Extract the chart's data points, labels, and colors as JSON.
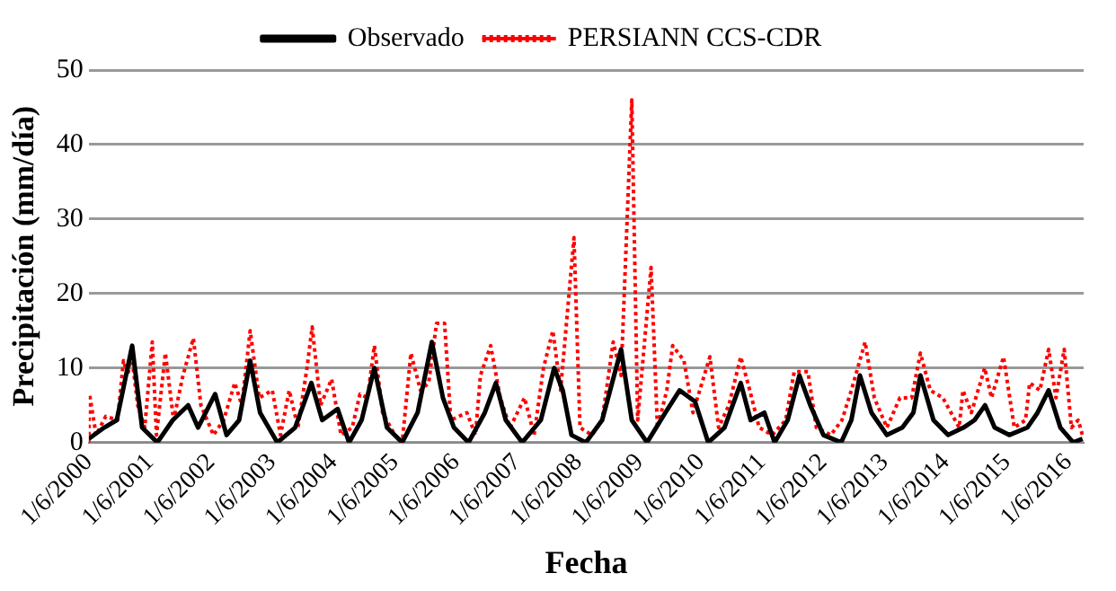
{
  "chart_data": {
    "type": "line",
    "xlabel": "Fecha",
    "ylabel": "Precipitación (mm/día)",
    "xlim": [
      "2000-06-01",
      "2016-09-01"
    ],
    "xticks": [
      {
        "value": "2000-06-01",
        "label": "1/6/2000"
      },
      {
        "value": "2001-06-01",
        "label": "1/6/2001"
      },
      {
        "value": "2002-06-01",
        "label": "1/6/2002"
      },
      {
        "value": "2003-06-01",
        "label": "1/6/2003"
      },
      {
        "value": "2004-06-01",
        "label": "1/6/2004"
      },
      {
        "value": "2005-06-01",
        "label": "1/6/2005"
      },
      {
        "value": "2006-06-01",
        "label": "1/6/2006"
      },
      {
        "value": "2007-06-01",
        "label": "1/6/2007"
      },
      {
        "value": "2008-06-01",
        "label": "1/6/2008"
      },
      {
        "value": "2009-06-01",
        "label": "1/6/2009"
      },
      {
        "value": "2010-06-01",
        "label": "1/6/2010"
      },
      {
        "value": "2011-06-01",
        "label": "1/6/2011"
      },
      {
        "value": "2012-06-01",
        "label": "1/6/2012"
      },
      {
        "value": "2013-06-01",
        "label": "1/6/2013"
      },
      {
        "value": "2014-06-01",
        "label": "1/6/2014"
      },
      {
        "value": "2015-06-01",
        "label": "1/6/2015"
      },
      {
        "value": "2016-06-01",
        "label": "1/6/2016"
      }
    ],
    "ylim": [
      0,
      50
    ],
    "yticks": [
      0,
      10,
      20,
      30,
      40,
      50
    ],
    "grid": "y",
    "legend": "top",
    "marker": "none",
    "series": [
      {
        "name": "Observado",
        "color": "#000000",
        "line_style": "solid",
        "x": [
          "2000-06-01",
          "2000-09-01",
          "2000-11-15",
          "2001-02-15",
          "2001-04-15",
          "2001-07-15",
          "2001-10-15",
          "2002-01-15",
          "2002-03-15",
          "2002-06-25",
          "2002-09-01",
          "2002-11-15",
          "2003-01-20",
          "2003-03-20",
          "2003-07-01",
          "2003-10-15",
          "2004-01-20",
          "2004-03-25",
          "2004-06-25",
          "2004-09-01",
          "2004-11-15",
          "2005-01-30",
          "2005-04-15",
          "2005-07-15",
          "2005-10-15",
          "2006-01-08",
          "2006-03-15",
          "2006-05-20",
          "2006-08-15",
          "2006-11-20",
          "2007-01-25",
          "2007-03-25",
          "2007-07-01",
          "2007-10-20",
          "2008-01-08",
          "2008-02-28",
          "2008-04-20",
          "2008-07-15",
          "2008-10-20",
          "2009-02-10",
          "2009-04-15",
          "2009-07-15",
          "2009-11-01",
          "2010-01-25",
          "2010-04-27",
          "2010-07-15",
          "2010-10-20",
          "2011-01-25",
          "2011-03-25",
          "2011-06-15",
          "2011-08-15",
          "2011-11-01",
          "2012-01-10",
          "2012-03-15",
          "2012-06-01",
          "2012-09-15",
          "2012-11-15",
          "2013-01-05",
          "2013-03-15",
          "2013-06-15",
          "2013-09-15",
          "2013-11-20",
          "2014-01-01",
          "2014-03-20",
          "2014-06-15",
          "2014-09-15",
          "2014-11-20",
          "2015-01-22",
          "2015-03-20",
          "2015-06-15",
          "2015-10-01",
          "2015-12-01",
          "2016-02-05",
          "2016-04-15",
          "2016-07-01",
          "2016-08-25"
        ],
        "values": [
          0.5,
          2,
          3,
          13,
          2,
          0,
          3,
          5,
          2,
          6.5,
          1,
          3,
          11,
          4,
          0,
          2,
          8,
          3,
          4.5,
          0,
          3,
          10,
          2,
          0,
          4,
          13.5,
          6,
          2,
          0,
          4,
          8,
          3,
          0,
          3,
          10,
          7,
          1,
          0,
          3,
          12.5,
          3,
          0,
          4,
          7,
          5.5,
          0,
          2,
          8,
          3,
          4,
          0,
          3,
          9,
          5,
          1,
          0,
          3,
          9,
          4,
          1,
          2,
          4,
          9,
          3,
          1,
          2,
          3,
          5,
          2,
          1,
          2,
          4,
          7,
          2,
          0,
          0.5
        ]
      },
      {
        "name": "PERSIANN CCS-CDR",
        "color": "#ff0000",
        "line_style": "dotted",
        "x": [
          "2000-06-01",
          "2000-06-05",
          "2000-07-15",
          "2000-09-10",
          "2000-11-20",
          "2000-12-25",
          "2001-01-20",
          "2001-02-10",
          "2001-03-20",
          "2001-05-01",
          "2001-06-15",
          "2001-07-10",
          "2001-09-01",
          "2001-10-20",
          "2001-12-15",
          "2002-02-15",
          "2002-04-01",
          "2002-06-15",
          "2002-08-15",
          "2002-10-20",
          "2002-12-01",
          "2003-01-20",
          "2003-03-15",
          "2003-06-01",
          "2003-07-20",
          "2003-09-10",
          "2003-11-01",
          "2003-12-25",
          "2004-01-25",
          "2004-03-15",
          "2004-05-20",
          "2004-07-15",
          "2004-09-20",
          "2004-11-05",
          "2004-12-20",
          "2005-01-30",
          "2005-03-20",
          "2005-06-01",
          "2005-07-15",
          "2005-09-05",
          "2005-11-01",
          "2005-12-20",
          "2006-02-05",
          "2006-03-25",
          "2006-05-01",
          "2006-08-05",
          "2006-09-25",
          "2006-10-25",
          "2006-12-25",
          "2007-02-20",
          "2007-04-20",
          "2007-07-15",
          "2007-09-10",
          "2007-11-05",
          "2007-12-31",
          "2008-02-15",
          "2008-05-05",
          "2008-06-10",
          "2008-08-20",
          "2008-10-20",
          "2008-12-25",
          "2009-02-10",
          "2009-04-15",
          "2009-05-20",
          "2009-08-08",
          "2009-09-15",
          "2009-11-10",
          "2009-12-15",
          "2010-02-20",
          "2010-04-15",
          "2010-07-25",
          "2010-09-15",
          "2010-11-15",
          "2011-01-25",
          "2011-03-20",
          "2011-05-15",
          "2011-08-01",
          "2011-10-20",
          "2011-12-10",
          "2012-01-10",
          "2012-03-01",
          "2012-04-20",
          "2012-07-15",
          "2012-09-20",
          "2012-11-15",
          "2013-02-05",
          "2013-04-01",
          "2013-06-15",
          "2013-09-01",
          "2013-11-10",
          "2014-01-01",
          "2014-03-01",
          "2014-05-15",
          "2014-08-20",
          "2014-09-12",
          "2014-11-01",
          "2015-01-20",
          "2015-03-01",
          "2015-05-12",
          "2015-07-15",
          "2015-09-20",
          "2015-10-15",
          "2015-12-15",
          "2016-02-05",
          "2016-03-20",
          "2016-05-08",
          "2016-06-20",
          "2016-07-30",
          "2016-08-25"
        ],
        "values": [
          0,
          6.5,
          1,
          3.5,
          3,
          11,
          9,
          12,
          5,
          2,
          13.5,
          1,
          12,
          3,
          9,
          14,
          5,
          1,
          3,
          8,
          5,
          15,
          6,
          7,
          1,
          7,
          2,
          10,
          15.5,
          5,
          8.5,
          1,
          2,
          6.5,
          6,
          13,
          4,
          1,
          0,
          12,
          7,
          8,
          16,
          16,
          3,
          4,
          1,
          9,
          13,
          6,
          2,
          6,
          1,
          10,
          15,
          7,
          27.5,
          2,
          1,
          3,
          13.5,
          9,
          46,
          3,
          23.5,
          2,
          7,
          13,
          11,
          4,
          11.5,
          2,
          5,
          11.5,
          7,
          2,
          1,
          3,
          9.5,
          9.5,
          9.5,
          2,
          1,
          3,
          7,
          13.5,
          6,
          2,
          6,
          6,
          12,
          7,
          6,
          2,
          7,
          4,
          10,
          6,
          11.5,
          2,
          3,
          8,
          7,
          12.5,
          6,
          12.5,
          2,
          3,
          1
        ]
      }
    ]
  }
}
